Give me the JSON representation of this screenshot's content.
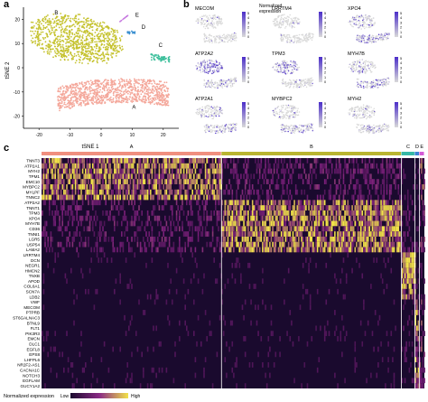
{
  "panels": {
    "a": "a",
    "b": "b",
    "c": "c"
  },
  "panel_a": {
    "xlabel": "tSNE 1",
    "ylabel": "tSNE 2",
    "xticks": [
      "-20",
      "-10",
      "0",
      "10",
      "20"
    ],
    "yticks": [
      "-20",
      "-10",
      "0",
      "10",
      "20"
    ],
    "clusters": [
      {
        "name": "A",
        "color": "#f4a79a"
      },
      {
        "name": "B",
        "color": "#c5c22e"
      },
      {
        "name": "C",
        "color": "#3cbf9b"
      },
      {
        "name": "D",
        "color": "#3a8fd0"
      },
      {
        "name": "E",
        "color": "#c77ae0"
      }
    ]
  },
  "panel_b": {
    "legend_title": "Normalized expression",
    "legend_ticks": [
      "5",
      "4",
      "3",
      "2",
      "1",
      "0"
    ],
    "colors": {
      "low": "#d9d9d9",
      "high": "#4b2ec9"
    },
    "genes": [
      "MECOM",
      "LRRTM4",
      "XPO4",
      "ATP2A2",
      "TPM3",
      "MYH7B",
      "ATP2A1",
      "MYBPC2",
      "MYH2"
    ]
  },
  "panel_c": {
    "groups": [
      {
        "name": "A",
        "color": "#f08f7f",
        "width": 0.47
      },
      {
        "name": "B",
        "color": "#b9b531",
        "width": 0.47
      },
      {
        "name": "C",
        "color": "#35b8a6",
        "width": 0.035
      },
      {
        "name": "D",
        "color": "#3b82d6",
        "width": 0.012
      },
      {
        "name": "E",
        "color": "#d45ad6",
        "width": 0.013
      }
    ],
    "genes": [
      "TNNT3",
      "ATP2A1",
      "MYH2",
      "TPM1",
      "EMC10",
      "MYBPC2",
      "MYLPF",
      "TNNC2",
      "ATP2A2",
      "TNNT1",
      "TPM3",
      "XPO4",
      "MYH7B",
      "CD36",
      "TNNI1",
      "LGR5",
      "USP54",
      "LAMA2",
      "LRRTM4",
      "DCN",
      "NEGR1",
      "HMCN2",
      "TNXB",
      "APOD",
      "COL6A1",
      "SCN7A",
      "LDB2",
      "VWF",
      "MECOM",
      "PTPRB",
      "ST6GALNAC3",
      "BTNL9",
      "FLT1",
      "PIK3R3",
      "EMCN",
      "DLC1",
      "EGFL8",
      "EPS8",
      "LHFPL6",
      "NR2F2-AS1",
      "CACNA1C",
      "NOTCH3",
      "EGFLAM",
      "GUCY1A2"
    ],
    "legend_label": "Normalized expression",
    "legend_low": "Low",
    "legend_high": "High",
    "colors": {
      "low": "#1a0a2e",
      "mid": "#7a1f7a",
      "high": "#f2e34a"
    }
  }
}
